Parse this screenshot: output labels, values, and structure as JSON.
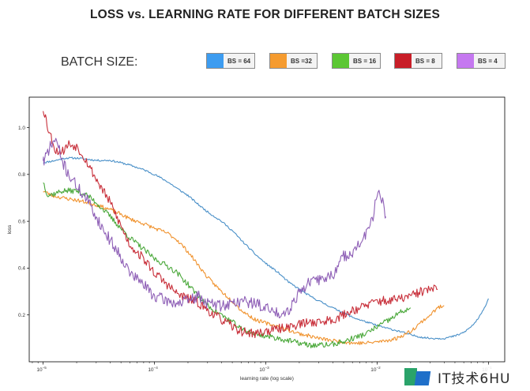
{
  "title": "LOSS vs. LEARNING RATE  FOR DIFFERENT BATCH SIZES",
  "legend_label": "BATCH SIZE:",
  "watermark": "IT技术6HU",
  "chart_data": {
    "type": "line",
    "xlabel": "learning rate (log scale)",
    "ylabel": "loss",
    "xscale": "log",
    "xlim": [
      7.5e-06,
      0.14
    ],
    "ylim": [
      0.0,
      1.13
    ],
    "yticks": [
      0.2,
      0.4,
      0.6,
      0.8,
      1.0
    ],
    "ytick_labels": [
      "0.2",
      "0.4",
      "0.6",
      "0.8",
      "1.0"
    ],
    "xticks": [
      1e-05,
      0.0001,
      0.001,
      0.01,
      0.1
    ],
    "xtick_labels": [
      {
        "base": "10",
        "exp": "−5"
      },
      {
        "base": "10",
        "exp": "−4"
      },
      {
        "base": "10",
        "exp": "−3"
      },
      {
        "base": "10",
        "exp": "−2"
      },
      {
        "base": "10",
        "exp": "−1"
      }
    ],
    "grid": false,
    "series": [
      {
        "name": "BS = 64",
        "color": "#4a90c8",
        "swatch": "#3d9cf0",
        "noise": 0.004,
        "seed": 11,
        "x": [
          1e-05,
          1.3e-05,
          1.6e-05,
          2e-05,
          2.5e-05,
          3e-05,
          4e-05,
          5e-05,
          6e-05,
          8e-05,
          0.0001,
          0.00013,
          0.00016,
          0.0002,
          0.00025,
          0.0003,
          0.0004,
          0.0005,
          0.0006,
          0.0008,
          0.001,
          0.0013,
          0.0016,
          0.002,
          0.0025,
          0.003,
          0.004,
          0.005,
          0.006,
          0.008,
          0.01,
          0.013,
          0.016,
          0.02,
          0.025,
          0.03,
          0.04,
          0.05,
          0.06,
          0.07,
          0.08,
          0.09,
          0.1
        ],
        "y": [
          0.85,
          0.86,
          0.87,
          0.87,
          0.865,
          0.86,
          0.86,
          0.85,
          0.84,
          0.82,
          0.8,
          0.77,
          0.74,
          0.71,
          0.67,
          0.64,
          0.6,
          0.56,
          0.52,
          0.46,
          0.42,
          0.38,
          0.34,
          0.31,
          0.28,
          0.26,
          0.23,
          0.21,
          0.19,
          0.17,
          0.155,
          0.14,
          0.13,
          0.115,
          0.105,
          0.1,
          0.1,
          0.11,
          0.125,
          0.15,
          0.18,
          0.22,
          0.27
        ]
      },
      {
        "name": "BS =32",
        "color": "#f0922d",
        "swatch": "#f59b2f",
        "noise": 0.008,
        "seed": 23,
        "x": [
          1e-05,
          1.2e-05,
          1.5e-05,
          2e-05,
          2.5e-05,
          3e-05,
          4e-05,
          5e-05,
          6e-05,
          8e-05,
          0.0001,
          0.00013,
          0.00016,
          0.0002,
          0.00025,
          0.0003,
          0.0004,
          0.0005,
          0.0006,
          0.0008,
          0.001,
          0.0013,
          0.0016,
          0.002,
          0.0025,
          0.003,
          0.004,
          0.005,
          0.006,
          0.008,
          0.01,
          0.012,
          0.015,
          0.02,
          0.025,
          0.03,
          0.035,
          0.04
        ],
        "y": [
          0.73,
          0.71,
          0.7,
          0.69,
          0.68,
          0.67,
          0.65,
          0.63,
          0.61,
          0.59,
          0.57,
          0.55,
          0.52,
          0.47,
          0.41,
          0.36,
          0.3,
          0.26,
          0.22,
          0.18,
          0.165,
          0.15,
          0.135,
          0.12,
          0.11,
          0.1,
          0.09,
          0.085,
          0.08,
          0.08,
          0.085,
          0.09,
          0.1,
          0.13,
          0.17,
          0.2,
          0.23,
          0.24
        ]
      },
      {
        "name": "BS = 16",
        "color": "#4aa83a",
        "swatch": "#5cc734",
        "noise": 0.012,
        "seed": 37,
        "x": [
          1e-05,
          1.1e-05,
          1.3e-05,
          1.5e-05,
          2e-05,
          2.5e-05,
          3e-05,
          4e-05,
          5e-05,
          6e-05,
          8e-05,
          0.0001,
          0.00013,
          0.00016,
          0.0002,
          0.00025,
          0.0003,
          0.0004,
          0.0005,
          0.0006,
          0.0008,
          0.001,
          0.0013,
          0.0016,
          0.002,
          0.0025,
          0.003,
          0.004,
          0.005,
          0.006,
          0.008,
          0.01,
          0.013,
          0.016,
          0.02
        ],
        "y": [
          0.77,
          0.71,
          0.72,
          0.73,
          0.73,
          0.71,
          0.68,
          0.62,
          0.57,
          0.53,
          0.48,
          0.44,
          0.41,
          0.38,
          0.33,
          0.28,
          0.24,
          0.2,
          0.17,
          0.14,
          0.12,
          0.11,
          0.1,
          0.09,
          0.08,
          0.07,
          0.07,
          0.075,
          0.085,
          0.1,
          0.12,
          0.15,
          0.18,
          0.21,
          0.23
        ]
      },
      {
        "name": "BS = 8",
        "color": "#c82f3a",
        "swatch": "#c81e28",
        "noise": 0.02,
        "seed": 53,
        "x": [
          1e-05,
          1.05e-05,
          1.1e-05,
          1.2e-05,
          1.3e-05,
          1.5e-05,
          1.7e-05,
          2e-05,
          2.3e-05,
          2.5e-05,
          3e-05,
          4e-05,
          5e-05,
          6e-05,
          8e-05,
          0.0001,
          0.00013,
          0.00016,
          0.0002,
          0.00025,
          0.0003,
          0.0004,
          0.0005,
          0.0006,
          0.0008,
          0.001,
          0.0013,
          0.0016,
          0.002,
          0.0025,
          0.003,
          0.004,
          0.005,
          0.006,
          0.008,
          0.01,
          0.013,
          0.016,
          0.02,
          0.025,
          0.03,
          0.035
        ],
        "y": [
          1.08,
          1.05,
          1.0,
          0.95,
          0.9,
          0.9,
          0.93,
          0.92,
          0.88,
          0.85,
          0.78,
          0.68,
          0.58,
          0.5,
          0.44,
          0.38,
          0.33,
          0.29,
          0.27,
          0.25,
          0.22,
          0.18,
          0.15,
          0.13,
          0.12,
          0.13,
          0.14,
          0.15,
          0.16,
          0.17,
          0.17,
          0.18,
          0.2,
          0.22,
          0.24,
          0.26,
          0.26,
          0.27,
          0.28,
          0.3,
          0.31,
          0.31
        ]
      },
      {
        "name": "BS = 4",
        "color": "#8e5fb6",
        "swatch": "#c578f0",
        "noise": 0.025,
        "seed": 71,
        "x": [
          1e-05,
          1.02e-05,
          1.05e-05,
          1.1e-05,
          1.2e-05,
          1.3e-05,
          1.4e-05,
          1.5e-05,
          1.7e-05,
          2e-05,
          2.5e-05,
          3e-05,
          3.5e-05,
          4e-05,
          5e-05,
          6e-05,
          8e-05,
          0.0001,
          0.00013,
          0.00016,
          0.0002,
          0.00025,
          0.0003,
          0.0004,
          0.0005,
          0.0006,
          0.0008,
          0.001,
          0.0012,
          0.0014,
          0.0016,
          0.002,
          0.0025,
          0.003,
          0.004,
          0.005,
          0.006,
          0.007,
          0.008,
          0.009,
          0.01,
          0.011,
          0.012
        ],
        "y": [
          0.87,
          0.85,
          0.87,
          0.9,
          0.93,
          0.95,
          0.9,
          0.85,
          0.8,
          0.75,
          0.69,
          0.62,
          0.56,
          0.52,
          0.45,
          0.38,
          0.33,
          0.28,
          0.26,
          0.25,
          0.26,
          0.28,
          0.25,
          0.24,
          0.25,
          0.26,
          0.25,
          0.23,
          0.21,
          0.21,
          0.22,
          0.3,
          0.34,
          0.35,
          0.37,
          0.45,
          0.47,
          0.5,
          0.55,
          0.6,
          0.72,
          0.69,
          0.62
        ]
      }
    ]
  }
}
